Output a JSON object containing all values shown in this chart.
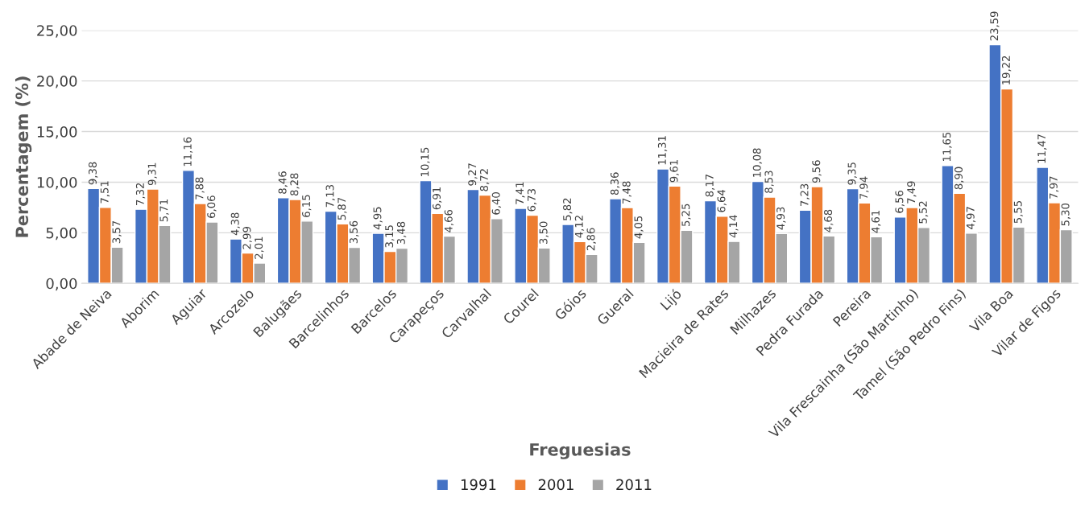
{
  "chart_data": {
    "type": "bar",
    "xlabel": "Freguesias",
    "ylabel": "Percentagem (%)",
    "categories": [
      "Abade de Neiva",
      "Aborim",
      "Aguiar",
      "Arcozelo",
      "Balugães",
      "Barcelinhos",
      "Barcelos",
      "Carapeços",
      "Carvalhal",
      "Courel",
      "Góios",
      "Gueral",
      "Lijó",
      "Macieira de Rates",
      "Milhazes",
      "Pedra Furada",
      "Pereira",
      "Vila Frescainha (São Martinho)",
      "Tamel (São Pedro Fins)",
      "Vila Boa",
      "Vilar de Figos"
    ],
    "series": [
      {
        "name": "1991",
        "color": "#4472c4",
        "values": [
          9.38,
          7.32,
          11.16,
          4.38,
          8.46,
          7.13,
          4.95,
          10.15,
          9.27,
          7.41,
          5.82,
          8.36,
          11.31,
          8.17,
          10.08,
          7.23,
          9.35,
          6.56,
          11.65,
          23.59,
          11.47
        ],
        "value_labels": [
          "9,38",
          "7,32",
          "11,16",
          "4,38",
          "8,46",
          "7,13",
          "4,95",
          "10,15",
          "9,27",
          "7,41",
          "5,82",
          "8,36",
          "11,31",
          "8,17",
          "10,08",
          "7,23",
          "9,35",
          "6,56",
          "11,65",
          "23,59",
          "11,47"
        ]
      },
      {
        "name": "2001",
        "color": "#ed7d31",
        "values": [
          7.51,
          9.31,
          7.88,
          2.99,
          8.28,
          5.87,
          3.15,
          6.91,
          8.72,
          6.73,
          4.12,
          7.48,
          9.61,
          6.64,
          8.53,
          9.56,
          7.94,
          7.49,
          8.9,
          19.22,
          7.97
        ],
        "value_labels": [
          "7,51",
          "9,31",
          "7,88",
          "2,99",
          "8,28",
          "5,87",
          "3,15",
          "6,91",
          "8,72",
          "6,73",
          "4,12",
          "7,48",
          "9,61",
          "6,64",
          "8,53",
          "9,56",
          "7,94",
          "7,49",
          "8,90",
          "19,22",
          "7,97"
        ]
      },
      {
        "name": "2011",
        "color": "#a5a5a5",
        "values": [
          3.57,
          5.71,
          6.06,
          2.01,
          6.15,
          3.56,
          3.48,
          4.66,
          6.4,
          3.5,
          2.86,
          4.05,
          5.25,
          4.14,
          4.93,
          4.68,
          4.61,
          5.52,
          4.97,
          5.55,
          5.3
        ],
        "value_labels": [
          "3,57",
          "5,71",
          "6,06",
          "2,01",
          "6,15",
          "3,56",
          "3,48",
          "4,66",
          "6,40",
          "3,50",
          "2,86",
          "4,05",
          "5,25",
          "4,14",
          "4,93",
          "4,68",
          "4,61",
          "5,52",
          "4,97",
          "5,55",
          "5,30"
        ]
      }
    ],
    "ylim": [
      0,
      25
    ],
    "yticks": [
      {
        "value": 0,
        "label": "0,00"
      },
      {
        "value": 5,
        "label": "5,00"
      },
      {
        "value": 10,
        "label": "10,00"
      },
      {
        "value": 15,
        "label": "15,00"
      },
      {
        "value": 20,
        "label": "20,00"
      },
      {
        "value": 25,
        "label": "25,00"
      }
    ],
    "grid": "y",
    "legend": "bottom"
  }
}
